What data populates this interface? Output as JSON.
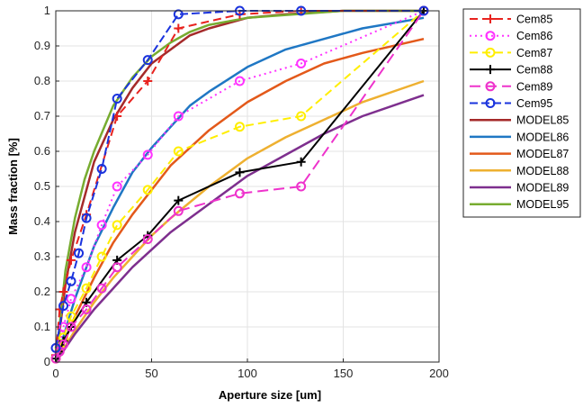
{
  "chart_data": {
    "type": "line",
    "title": "",
    "xlabel": "Aperture size  [um]",
    "ylabel": "Mass fraction  [%]",
    "xlim": [
      0,
      200
    ],
    "ylim": [
      0,
      1
    ],
    "xticks": [
      0,
      50,
      100,
      150,
      200
    ],
    "yticks": [
      0,
      0.1,
      0.2,
      0.3,
      0.4,
      0.5,
      0.6,
      0.7,
      0.8,
      0.9,
      1
    ],
    "grid": true,
    "legend_position": "outside-right",
    "series": [
      {
        "name": "Cem85",
        "color": "#e8231f",
        "dash": "9,5",
        "marker": "plus",
        "x": [
          0,
          2,
          4,
          8,
          16,
          32,
          48,
          64,
          96,
          128,
          192
        ],
        "y": [
          0.02,
          0.15,
          0.2,
          0.29,
          0.42,
          0.7,
          0.8,
          0.95,
          0.99,
          1.0,
          1.0
        ]
      },
      {
        "name": "Cem86",
        "color": "#ff33ff",
        "dash": "2,4",
        "marker": "circle",
        "x": [
          0,
          2,
          4,
          8,
          16,
          24,
          32,
          48,
          64,
          96,
          128,
          192
        ],
        "y": [
          0.01,
          0.05,
          0.1,
          0.18,
          0.27,
          0.39,
          0.5,
          0.59,
          0.7,
          0.8,
          0.85,
          1.0
        ]
      },
      {
        "name": "Cem87",
        "color": "#ffee00",
        "dash": "9,5",
        "marker": "circle",
        "x": [
          0,
          2,
          4,
          8,
          16,
          24,
          32,
          48,
          64,
          96,
          128,
          192
        ],
        "y": [
          0.01,
          0.04,
          0.07,
          0.13,
          0.21,
          0.3,
          0.39,
          0.49,
          0.6,
          0.67,
          0.7,
          1.0
        ]
      },
      {
        "name": "Cem88",
        "color": "#000000",
        "dash": "",
        "marker": "plus",
        "x": [
          0,
          2,
          4,
          8,
          16,
          32,
          48,
          64,
          96,
          128,
          192
        ],
        "y": [
          0.01,
          0.03,
          0.06,
          0.1,
          0.17,
          0.29,
          0.36,
          0.46,
          0.54,
          0.57,
          1.0
        ]
      },
      {
        "name": "Cem89",
        "color": "#ee33cc",
        "dash": "12,6",
        "marker": "circle",
        "x": [
          0,
          2,
          4,
          8,
          16,
          24,
          32,
          48,
          64,
          96,
          128,
          192
        ],
        "y": [
          0.01,
          0.03,
          0.05,
          0.1,
          0.15,
          0.21,
          0.27,
          0.35,
          0.43,
          0.48,
          0.5,
          1.0
        ]
      },
      {
        "name": "Cem95",
        "color": "#1a33dd",
        "dash": "9,4",
        "marker": "circle",
        "x": [
          0,
          4,
          8,
          12,
          16,
          24,
          32,
          48,
          64,
          96,
          128,
          192
        ],
        "y": [
          0.04,
          0.16,
          0.23,
          0.31,
          0.41,
          0.55,
          0.75,
          0.86,
          0.99,
          1.0,
          1.0,
          1.0
        ]
      },
      {
        "name": "MODEL85",
        "color": "#a52a2a",
        "dash": "",
        "marker": "none",
        "x": [
          0,
          5,
          10,
          20,
          30,
          40,
          50,
          60,
          70,
          80,
          100,
          120,
          150,
          192
        ],
        "y": [
          0.0,
          0.22,
          0.37,
          0.57,
          0.69,
          0.78,
          0.85,
          0.89,
          0.93,
          0.95,
          0.98,
          0.99,
          1.0,
          1.0
        ]
      },
      {
        "name": "MODEL86",
        "color": "#1f77c4",
        "dash": "",
        "marker": "none",
        "x": [
          0,
          10,
          20,
          30,
          40,
          50,
          60,
          70,
          80,
          100,
          120,
          140,
          160,
          192
        ],
        "y": [
          0.0,
          0.18,
          0.33,
          0.44,
          0.54,
          0.61,
          0.67,
          0.73,
          0.77,
          0.84,
          0.89,
          0.92,
          0.95,
          0.98
        ]
      },
      {
        "name": "MODEL87",
        "color": "#e3591a",
        "dash": "",
        "marker": "none",
        "x": [
          0,
          10,
          20,
          30,
          40,
          50,
          60,
          70,
          80,
          100,
          120,
          140,
          160,
          192
        ],
        "y": [
          0.0,
          0.13,
          0.24,
          0.34,
          0.42,
          0.49,
          0.56,
          0.61,
          0.66,
          0.74,
          0.8,
          0.85,
          0.88,
          0.92
        ]
      },
      {
        "name": "MODEL88",
        "color": "#eeb030",
        "dash": "",
        "marker": "none",
        "x": [
          0,
          10,
          20,
          30,
          40,
          50,
          60,
          80,
          100,
          120,
          140,
          160,
          192
        ],
        "y": [
          0.0,
          0.09,
          0.17,
          0.24,
          0.3,
          0.36,
          0.41,
          0.5,
          0.58,
          0.64,
          0.69,
          0.74,
          0.8
        ]
      },
      {
        "name": "MODEL89",
        "color": "#7e2f8e",
        "dash": "",
        "marker": "none",
        "x": [
          0,
          10,
          20,
          30,
          40,
          50,
          60,
          80,
          100,
          120,
          140,
          160,
          192
        ],
        "y": [
          0.0,
          0.08,
          0.15,
          0.21,
          0.27,
          0.32,
          0.37,
          0.45,
          0.53,
          0.59,
          0.65,
          0.7,
          0.76
        ]
      },
      {
        "name": "MODEL95",
        "color": "#77ac30",
        "dash": "",
        "marker": "none",
        "x": [
          0,
          5,
          10,
          15,
          20,
          30,
          40,
          50,
          60,
          70,
          80,
          100,
          150,
          192
        ],
        "y": [
          0.0,
          0.26,
          0.41,
          0.52,
          0.6,
          0.73,
          0.81,
          0.87,
          0.91,
          0.94,
          0.96,
          0.98,
          1.0,
          1.0
        ]
      }
    ]
  }
}
